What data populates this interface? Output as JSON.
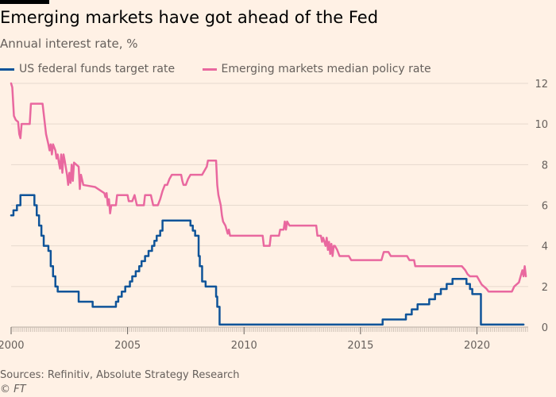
{
  "header": {
    "title": "Emerging markets have got ahead of the Fed",
    "subtitle": "Annual interest rate, %"
  },
  "footer": {
    "source": "Sources: Refinitiv, Absolute Strategy Research",
    "credit": "© FT"
  },
  "colors": {
    "background": "#FFF1E5",
    "fed": "#0F5499",
    "em": "#E9689F",
    "grid": "#E6D9CE",
    "axis_text": "#66605C"
  },
  "chart_data": {
    "type": "line",
    "title": "Emerging markets have got ahead of the Fed",
    "subtitle": "Annual interest rate, %",
    "ylabel": "Annual interest rate, %",
    "xlim": [
      2000,
      2022.2
    ],
    "ylim": [
      0,
      12
    ],
    "y_ticks": [
      "0",
      "2",
      "4",
      "6",
      "8",
      "10",
      "12"
    ],
    "x_ticks": [
      "2000",
      "2005",
      "2010",
      "2015",
      "2020"
    ],
    "grid": true,
    "y_axis_side": "right",
    "legend_placement": "top-left",
    "series": [
      {
        "name": "US federal funds target rate",
        "color": "#0F5499",
        "step": true,
        "points": [
          [
            2000.0,
            5.5
          ],
          [
            2000.1,
            5.75
          ],
          [
            2000.25,
            6.0
          ],
          [
            2000.4,
            6.5
          ],
          [
            2001.0,
            6.0
          ],
          [
            2001.1,
            5.5
          ],
          [
            2001.2,
            5.0
          ],
          [
            2001.3,
            4.5
          ],
          [
            2001.4,
            4.0
          ],
          [
            2001.6,
            3.75
          ],
          [
            2001.7,
            3.0
          ],
          [
            2001.8,
            2.5
          ],
          [
            2001.9,
            2.0
          ],
          [
            2002.0,
            1.75
          ],
          [
            2002.9,
            1.25
          ],
          [
            2003.5,
            1.0
          ],
          [
            2004.5,
            1.25
          ],
          [
            2004.6,
            1.5
          ],
          [
            2004.75,
            1.75
          ],
          [
            2004.9,
            2.0
          ],
          [
            2005.1,
            2.25
          ],
          [
            2005.2,
            2.5
          ],
          [
            2005.35,
            2.75
          ],
          [
            2005.5,
            3.0
          ],
          [
            2005.6,
            3.25
          ],
          [
            2005.75,
            3.5
          ],
          [
            2005.9,
            3.75
          ],
          [
            2006.05,
            4.0
          ],
          [
            2006.15,
            4.25
          ],
          [
            2006.25,
            4.5
          ],
          [
            2006.4,
            4.75
          ],
          [
            2006.5,
            5.25
          ],
          [
            2007.7,
            5.0
          ],
          [
            2007.8,
            4.75
          ],
          [
            2007.9,
            4.5
          ],
          [
            2008.05,
            3.5
          ],
          [
            2008.1,
            3.0
          ],
          [
            2008.2,
            2.25
          ],
          [
            2008.35,
            2.0
          ],
          [
            2008.8,
            1.5
          ],
          [
            2008.85,
            1.0
          ],
          [
            2008.95,
            0.125
          ],
          [
            2015.95,
            0.375
          ],
          [
            2016.95,
            0.625
          ],
          [
            2017.2,
            0.875
          ],
          [
            2017.45,
            1.125
          ],
          [
            2017.95,
            1.375
          ],
          [
            2018.2,
            1.625
          ],
          [
            2018.45,
            1.875
          ],
          [
            2018.7,
            2.125
          ],
          [
            2018.95,
            2.375
          ],
          [
            2019.55,
            2.125
          ],
          [
            2019.7,
            1.875
          ],
          [
            2019.8,
            1.625
          ],
          [
            2020.17,
            0.125
          ],
          [
            2022.0,
            0.125
          ]
        ]
      },
      {
        "name": "Emerging markets median policy rate",
        "color": "#E9689F",
        "step": false,
        "points": [
          [
            2000.0,
            12.0
          ],
          [
            2000.05,
            11.8
          ],
          [
            2000.12,
            10.4
          ],
          [
            2000.2,
            10.2
          ],
          [
            2000.3,
            10.1
          ],
          [
            2000.35,
            9.5
          ],
          [
            2000.4,
            9.3
          ],
          [
            2000.45,
            10.0
          ],
          [
            2000.8,
            10.0
          ],
          [
            2000.85,
            11.0
          ],
          [
            2001.35,
            11.0
          ],
          [
            2001.4,
            10.5
          ],
          [
            2001.5,
            9.5
          ],
          [
            2001.6,
            9.0
          ],
          [
            2001.65,
            8.7
          ],
          [
            2001.7,
            9.0
          ],
          [
            2001.75,
            8.5
          ],
          [
            2001.8,
            9.0
          ],
          [
            2001.9,
            8.7
          ],
          [
            2001.95,
            8.3
          ],
          [
            2002.0,
            8.5
          ],
          [
            2002.05,
            8.1
          ],
          [
            2002.1,
            7.8
          ],
          [
            2002.15,
            8.5
          ],
          [
            2002.2,
            7.6
          ],
          [
            2002.25,
            8.5
          ],
          [
            2002.3,
            8.2
          ],
          [
            2002.4,
            7.5
          ],
          [
            2002.45,
            7.0
          ],
          [
            2002.5,
            7.6
          ],
          [
            2002.55,
            7.1
          ],
          [
            2002.6,
            8.0
          ],
          [
            2002.65,
            7.2
          ],
          [
            2002.7,
            8.1
          ],
          [
            2002.9,
            7.9
          ],
          [
            2002.95,
            6.8
          ],
          [
            2003.0,
            7.5
          ],
          [
            2003.1,
            7.0
          ],
          [
            2003.6,
            6.9
          ],
          [
            2004.0,
            6.6
          ],
          [
            2004.05,
            6.4
          ],
          [
            2004.1,
            6.6
          ],
          [
            2004.15,
            6.0
          ],
          [
            2004.2,
            6.3
          ],
          [
            2004.25,
            5.6
          ],
          [
            2004.3,
            6.0
          ],
          [
            2004.5,
            6.0
          ],
          [
            2004.55,
            6.5
          ],
          [
            2005.0,
            6.5
          ],
          [
            2005.05,
            6.2
          ],
          [
            2005.2,
            6.2
          ],
          [
            2005.3,
            6.5
          ],
          [
            2005.4,
            6.0
          ],
          [
            2005.7,
            6.0
          ],
          [
            2005.75,
            6.5
          ],
          [
            2006.0,
            6.5
          ],
          [
            2006.1,
            6.0
          ],
          [
            2006.3,
            6.0
          ],
          [
            2006.4,
            6.3
          ],
          [
            2006.5,
            6.7
          ],
          [
            2006.6,
            7.0
          ],
          [
            2006.7,
            7.0
          ],
          [
            2006.8,
            7.3
          ],
          [
            2006.9,
            7.5
          ],
          [
            2007.3,
            7.5
          ],
          [
            2007.35,
            7.2
          ],
          [
            2007.4,
            7.0
          ],
          [
            2007.5,
            7.0
          ],
          [
            2007.6,
            7.3
          ],
          [
            2007.7,
            7.5
          ],
          [
            2008.2,
            7.5
          ],
          [
            2008.3,
            7.7
          ],
          [
            2008.4,
            7.9
          ],
          [
            2008.45,
            8.2
          ],
          [
            2008.8,
            8.2
          ],
          [
            2008.85,
            7.0
          ],
          [
            2008.9,
            6.5
          ],
          [
            2009.0,
            6.0
          ],
          [
            2009.05,
            5.5
          ],
          [
            2009.1,
            5.2
          ],
          [
            2009.2,
            5.0
          ],
          [
            2009.3,
            4.6
          ],
          [
            2009.35,
            4.8
          ],
          [
            2009.4,
            4.5
          ],
          [
            2010.8,
            4.5
          ],
          [
            2010.85,
            4.0
          ],
          [
            2011.1,
            4.0
          ],
          [
            2011.15,
            4.5
          ],
          [
            2011.5,
            4.5
          ],
          [
            2011.55,
            4.8
          ],
          [
            2011.7,
            4.8
          ],
          [
            2011.75,
            5.2
          ],
          [
            2011.8,
            4.8
          ],
          [
            2011.85,
            5.2
          ],
          [
            2011.95,
            5.0
          ],
          [
            2012.0,
            5.0
          ],
          [
            2013.1,
            5.0
          ],
          [
            2013.15,
            4.5
          ],
          [
            2013.3,
            4.5
          ],
          [
            2013.35,
            4.2
          ],
          [
            2013.4,
            4.4
          ],
          [
            2013.5,
            4.0
          ],
          [
            2013.55,
            4.4
          ],
          [
            2013.6,
            3.8
          ],
          [
            2013.65,
            4.2
          ],
          [
            2013.7,
            3.6
          ],
          [
            2013.75,
            4.1
          ],
          [
            2013.8,
            3.5
          ],
          [
            2013.85,
            4.0
          ],
          [
            2013.9,
            4.0
          ],
          [
            2014.0,
            3.8
          ],
          [
            2014.1,
            3.5
          ],
          [
            2014.5,
            3.5
          ],
          [
            2014.6,
            3.3
          ],
          [
            2015.9,
            3.3
          ],
          [
            2016.0,
            3.7
          ],
          [
            2016.2,
            3.7
          ],
          [
            2016.3,
            3.5
          ],
          [
            2017.0,
            3.5
          ],
          [
            2017.1,
            3.3
          ],
          [
            2017.3,
            3.3
          ],
          [
            2017.35,
            3.0
          ],
          [
            2019.35,
            3.0
          ],
          [
            2019.5,
            2.8
          ],
          [
            2019.6,
            2.6
          ],
          [
            2019.7,
            2.5
          ],
          [
            2020.0,
            2.5
          ],
          [
            2020.1,
            2.3
          ],
          [
            2020.2,
            2.1
          ],
          [
            2020.4,
            1.9
          ],
          [
            2020.5,
            1.75
          ],
          [
            2021.5,
            1.75
          ],
          [
            2021.6,
            2.0
          ],
          [
            2021.8,
            2.2
          ],
          [
            2021.9,
            2.6
          ],
          [
            2021.95,
            2.8
          ],
          [
            2022.0,
            2.5
          ],
          [
            2022.05,
            3.0
          ],
          [
            2022.1,
            2.5
          ]
        ]
      }
    ]
  }
}
